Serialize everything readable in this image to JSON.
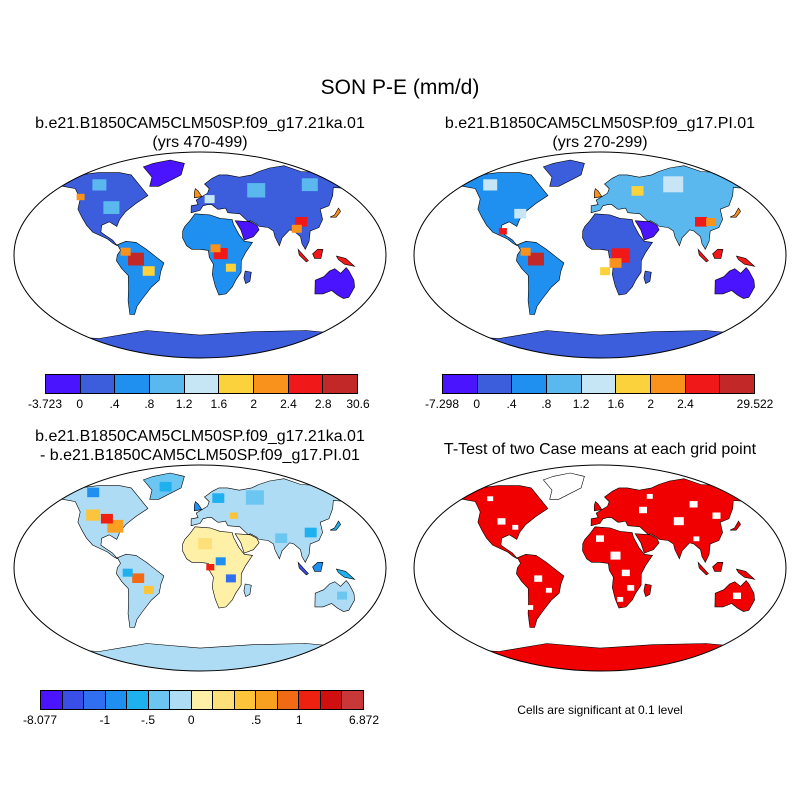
{
  "title": "SON P-E (mm/d)",
  "panels": [
    {
      "title_line1": "b.e21.B1850CAM5CLM50SP.f09_g17.21ka.01",
      "title_line2": "(yrs 470-499)",
      "colorbar": {
        "colors": [
          "#4a14ff",
          "#3c5edc",
          "#1f8ff0",
          "#5ab8ee",
          "#c6e6f6",
          "#fbd23c",
          "#f8921d",
          "#f01818",
          "#c22828"
        ],
        "tick_labels": [
          "-3.723",
          "0",
          ".4",
          ".8",
          "1.2",
          "1.6",
          "2",
          "2.4",
          "2.8",
          "30.6"
        ]
      }
    },
    {
      "title_line1": "b.e21.B1850CAM5CLM50SP.f09_g17.PI.01",
      "title_line2": "(yrs 270-299)",
      "colorbar": {
        "colors": [
          "#4a14ff",
          "#3c5edc",
          "#1f8ff0",
          "#5ab8ee",
          "#c6e6f6",
          "#fbd23c",
          "#f8921d",
          "#f01818",
          "#c22828"
        ],
        "tick_labels": [
          "-7.298",
          "0",
          ".4",
          ".8",
          "1.2",
          "1.6",
          "2",
          "2.4",
          "",
          "29.522"
        ]
      }
    },
    {
      "title_line1": "b.e21.B1850CAM5CLM50SP.f09_g17.21ka.01",
      "title_line2": "- b.e21.B1850CAM5CLM50SP.f09_g17.PI.01",
      "colorbar": {
        "colors": [
          "#4a14ff",
          "#3a4fe8",
          "#2f6ff0",
          "#1f8ff0",
          "#1fb0f0",
          "#6cc6f2",
          "#aedcf4",
          "#fff0a8",
          "#fde07a",
          "#fbc43a",
          "#f8a020",
          "#f26a14",
          "#ee2010",
          "#d01010",
          "#c83838"
        ],
        "tick_labels": [
          "-8.077",
          "",
          "",
          "-1",
          "",
          "-.5",
          "",
          "0",
          "",
          "",
          ".5",
          "",
          "1",
          "",
          "",
          "6.872"
        ]
      }
    },
    {
      "title_line1": "T-Test of two Case means at each grid point",
      "note": "Cells are significant at 0.1 level"
    }
  ]
}
